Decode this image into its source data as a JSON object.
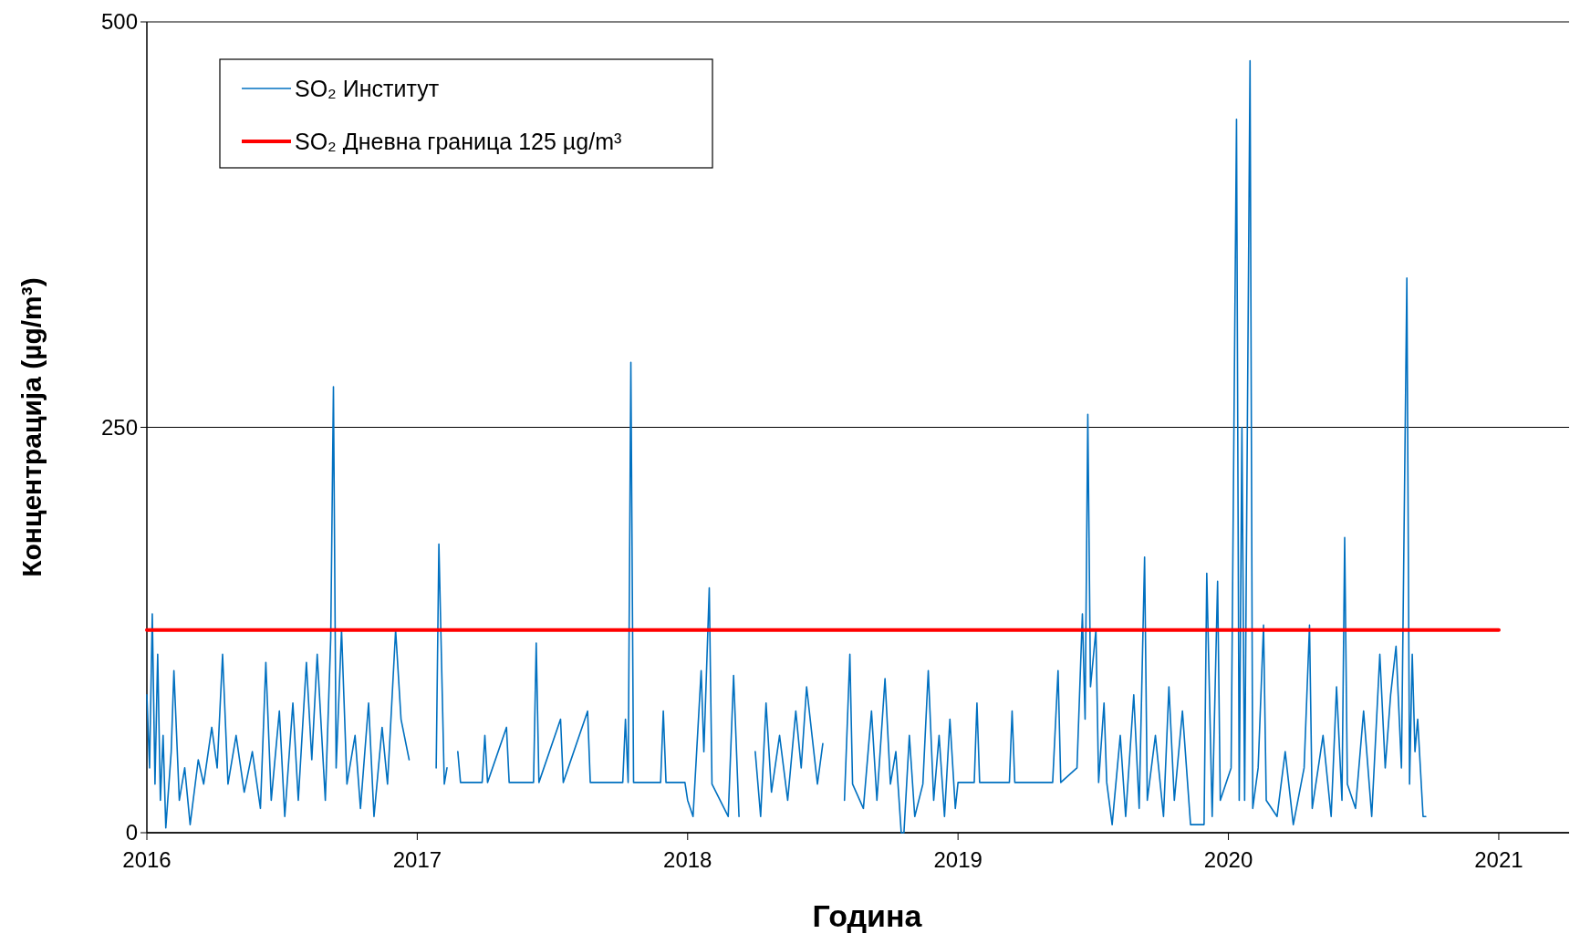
{
  "chart_data": {
    "type": "line",
    "xlabel": "Година",
    "ylabel": "Концентрација  (µg/m³)",
    "xlim": [
      2016,
      2021.26
    ],
    "xticks": [
      2016,
      2017,
      2018,
      2019,
      2020,
      2021
    ],
    "ylim": [
      0,
      500
    ],
    "yticks": [
      0,
      250,
      500
    ],
    "grid": "y",
    "legend": "top left",
    "series": [
      {
        "name": "SO₂ Институт",
        "color": "#0070c0",
        "x": [
          2016.0,
          2016.01,
          2016.02,
          2016.03,
          2016.04,
          2016.05,
          2016.06,
          2016.07,
          2016.09,
          2016.1,
          2016.12,
          2016.14,
          2016.16,
          2016.19,
          2016.21,
          2016.24,
          2016.26,
          2016.28,
          2016.3,
          2016.33,
          2016.36,
          2016.39,
          2016.42,
          2016.44,
          2016.46,
          2016.49,
          2016.51,
          2016.54,
          2016.56,
          2016.59,
          2016.61,
          2016.63,
          2016.66,
          2016.68,
          2016.69,
          2016.7,
          2016.72,
          2016.74,
          2016.77,
          2016.79,
          2016.82,
          2016.84,
          2016.87,
          2016.89,
          2016.92,
          2016.94,
          2016.97,
          2017.0,
          2017.07,
          2017.08,
          2017.1,
          2017.11,
          2017.13,
          2017.15,
          2017.16,
          2017.24,
          2017.25,
          2017.26,
          2017.33,
          2017.34,
          2017.43,
          2017.44,
          2017.45,
          2017.53,
          2017.54,
          2017.63,
          2017.64,
          2017.76,
          2017.77,
          2017.78,
          2017.79,
          2017.8,
          2017.9,
          2017.91,
          2017.92,
          2017.99,
          2018.0,
          2018.02,
          2018.05,
          2018.06,
          2018.08,
          2018.09,
          2018.12,
          2018.15,
          2018.17,
          2018.19,
          2018.22,
          2018.25,
          2018.27,
          2018.29,
          2018.31,
          2018.34,
          2018.37,
          2018.4,
          2018.42,
          2018.44,
          2018.46,
          2018.48,
          2018.5,
          2018.54,
          2018.58,
          2018.6,
          2018.61,
          2018.65,
          2018.68,
          2018.7,
          2018.73,
          2018.75,
          2018.77,
          2018.79,
          2018.8,
          2018.82,
          2018.84,
          2018.87,
          2018.89,
          2018.91,
          2018.93,
          2018.95,
          2018.97,
          2018.99,
          2019.0,
          2019.06,
          2019.07,
          2019.08,
          2019.19,
          2019.2,
          2019.21,
          2019.35,
          2019.37,
          2019.38,
          2019.44,
          2019.46,
          2019.47,
          2019.48,
          2019.49,
          2019.51,
          2019.52,
          2019.54,
          2019.55,
          2019.57,
          2019.6,
          2019.62,
          2019.65,
          2019.67,
          2019.69,
          2019.7,
          2019.73,
          2019.76,
          2019.78,
          2019.8,
          2019.83,
          2019.86,
          2019.91,
          2019.92,
          2019.94,
          2019.96,
          2019.97,
          2020.01,
          2020.03,
          2020.04,
          2020.05,
          2020.06,
          2020.08,
          2020.09,
          2020.11,
          2020.13,
          2020.14,
          2020.18,
          2020.21,
          2020.24,
          2020.28,
          2020.3,
          2020.31,
          2020.35,
          2020.38,
          2020.4,
          2020.42,
          2020.43,
          2020.44,
          2020.47,
          2020.5,
          2020.53,
          2020.56,
          2020.58,
          2020.6,
          2020.62,
          2020.64,
          2020.66,
          2020.67,
          2020.68,
          2020.69,
          2020.7,
          2020.72,
          2020.73
        ],
        "values": [
          85,
          40,
          135,
          30,
          110,
          20,
          60,
          3,
          50,
          100,
          20,
          40,
          5,
          45,
          30,
          65,
          40,
          110,
          30,
          60,
          25,
          50,
          15,
          105,
          20,
          75,
          10,
          80,
          20,
          105,
          45,
          110,
          20,
          120,
          275,
          40,
          125,
          30,
          60,
          15,
          80,
          10,
          65,
          30,
          125,
          70,
          45,
          null,
          40,
          178,
          30,
          40,
          null,
          50,
          31,
          31,
          60,
          31,
          65,
          31,
          31,
          117,
          31,
          70,
          31,
          75,
          31,
          31,
          70,
          31,
          290,
          31,
          31,
          75,
          31,
          31,
          20,
          10,
          100,
          50,
          151,
          30,
          20,
          10,
          97,
          10,
          null,
          50,
          10,
          80,
          25,
          60,
          20,
          75,
          40,
          90,
          60,
          30,
          55,
          null,
          20,
          110,
          30,
          15,
          75,
          20,
          95,
          30,
          50,
          0,
          0,
          60,
          10,
          30,
          100,
          20,
          60,
          10,
          70,
          15,
          31,
          31,
          80,
          31,
          31,
          75,
          31,
          31,
          100,
          31,
          40,
          135,
          70,
          258,
          90,
          125,
          31,
          80,
          31,
          5,
          60,
          10,
          85,
          15,
          170,
          20,
          60,
          10,
          90,
          20,
          75,
          5,
          5,
          160,
          10,
          155,
          20,
          40,
          440,
          20,
          250,
          20,
          476,
          15,
          40,
          128,
          20,
          10,
          50,
          5,
          40,
          128,
          15,
          60,
          10,
          90,
          20,
          182,
          30,
          15,
          75,
          10,
          110,
          40,
          85,
          115,
          40,
          342,
          30,
          110,
          50,
          70,
          10,
          10
        ]
      },
      {
        "name": "SO₂ Дневна граница 125 µg/m³",
        "color": "#ff0000",
        "x": [
          2016,
          2021
        ],
        "values": [
          125,
          125
        ]
      }
    ]
  }
}
